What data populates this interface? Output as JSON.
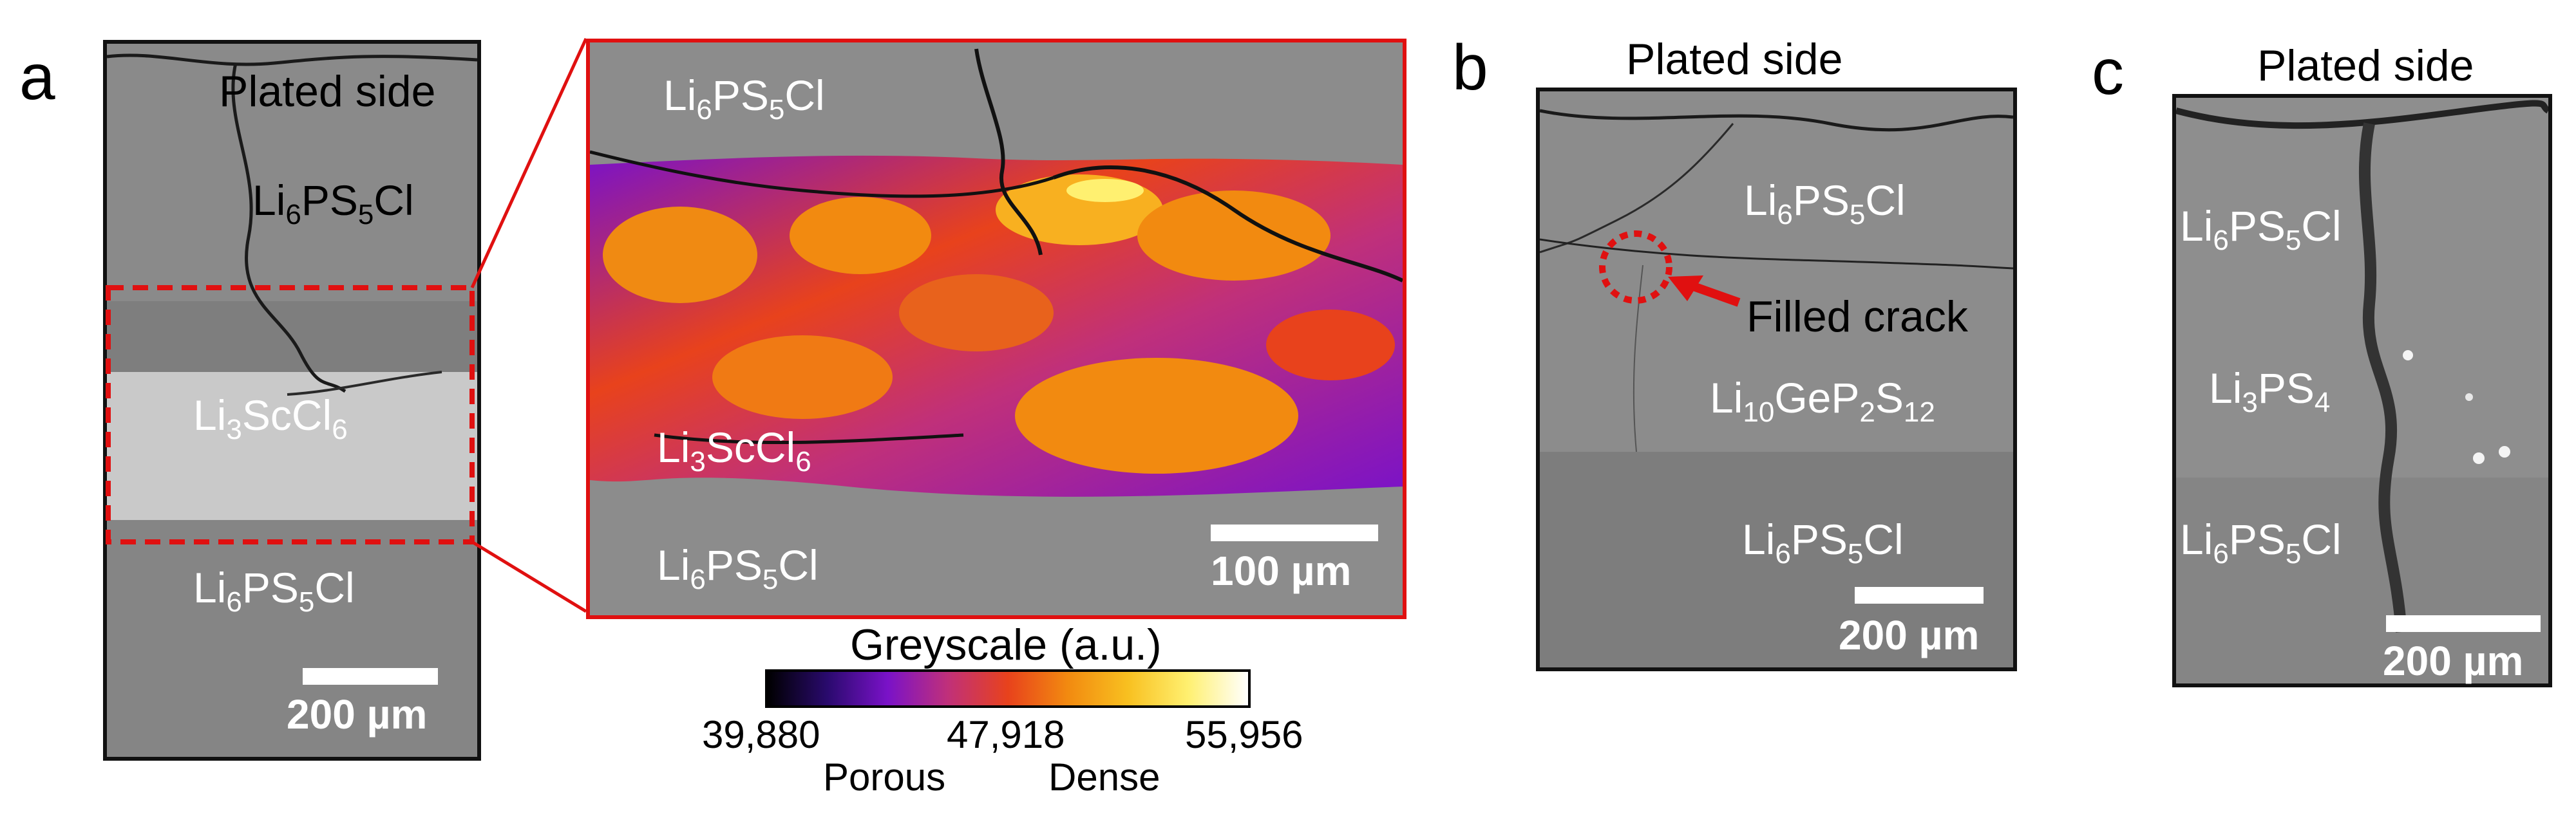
{
  "panel_a": {
    "label": "a",
    "plated_side": "Plated side",
    "upper_layer": [
      "Li",
      "6",
      "PS",
      "5",
      "Cl"
    ],
    "middle_layer": [
      "Li",
      "3",
      "ScCl",
      "6"
    ],
    "lower_layer": [
      "Li",
      "6",
      "PS",
      "5",
      "Cl"
    ],
    "scale_bar": "200 µm"
  },
  "inset": {
    "upper_layer": [
      "Li",
      "6",
      "PS",
      "5",
      "Cl"
    ],
    "middle_layer": [
      "Li",
      "3",
      "ScCl",
      "6"
    ],
    "lower_layer": [
      "Li",
      "6",
      "PS",
      "5",
      "Cl"
    ],
    "scale_bar": "100 µm"
  },
  "colorbar": {
    "title": "Greyscale (a.u.)",
    "min": "39,880",
    "mid": "47,918",
    "max": "55,956",
    "low_label": "Porous",
    "high_label": "Dense",
    "stops": [
      "#000000",
      "#2a0a6e",
      "#7a12c8",
      "#c0307a",
      "#e8421c",
      "#f28a10",
      "#f8c020",
      "#fff070",
      "#ffffff"
    ]
  },
  "panel_b": {
    "label": "b",
    "plated_side": "Plated side",
    "upper_layer": [
      "Li",
      "6",
      "PS",
      "5",
      "Cl"
    ],
    "middle_layer": [
      "Li",
      "10",
      "GeP",
      "2",
      "S",
      "12"
    ],
    "lower_layer": [
      "Li",
      "6",
      "PS",
      "5",
      "Cl"
    ],
    "annotation": "Filled crack",
    "scale_bar": "200 µm"
  },
  "panel_c": {
    "label": "c",
    "plated_side": "Plated side",
    "upper_layer": [
      "Li",
      "6",
      "PS",
      "5",
      "Cl"
    ],
    "middle_layer": [
      "Li",
      "3",
      "PS",
      "4"
    ],
    "lower_layer": [
      "Li",
      "6",
      "PS",
      "5",
      "Cl"
    ],
    "scale_bar": "200 µm"
  },
  "colors": {
    "highlight": "#e01010",
    "sem_grey": "#8a8a8a",
    "sem_light": "#c8c8c8"
  }
}
